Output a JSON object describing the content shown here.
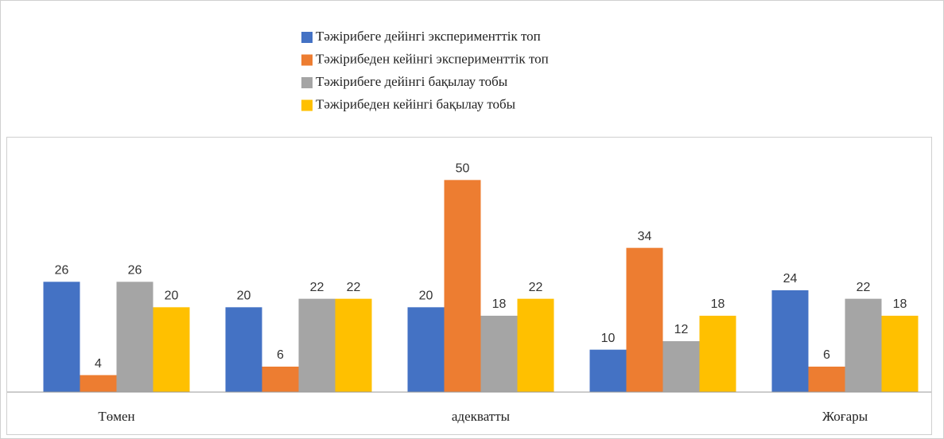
{
  "chart_data": {
    "type": "bar",
    "categories": [
      "Төмен",
      null,
      "адекватты",
      null,
      "Жоғары"
    ],
    "series": [
      {
        "name": "Тәжірибеге дейінгі эксперименттік топ",
        "color": "#4472c4",
        "values": [
          26,
          20,
          20,
          10,
          24
        ]
      },
      {
        "name": "Тәжірибеден кейінгі эксперименттік топ",
        "color": "#ed7d31",
        "values": [
          4,
          6,
          50,
          34,
          6
        ]
      },
      {
        "name": "Тәжірибеге дейінгі бақылау тобы",
        "color": "#a5a5a5",
        "values": [
          26,
          22,
          18,
          12,
          22
        ]
      },
      {
        "name": "Тәжірибеден кейінгі бақылау тобы",
        "color": "#ffc000",
        "values": [
          20,
          22,
          22,
          18,
          18
        ]
      }
    ],
    "ylim": [
      0,
      60
    ]
  }
}
